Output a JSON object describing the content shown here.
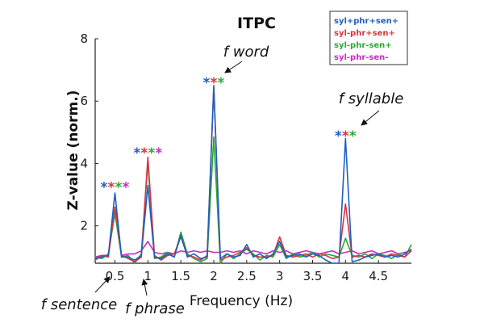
{
  "chart_data": {
    "type": "line",
    "title": "ITPC",
    "xlabel": "Frequency (Hz)",
    "ylabel": "Z-value (norm.)",
    "xlim": [
      0.2,
      5.0
    ],
    "ylim": [
      0.8,
      8
    ],
    "xticks": [
      0.5,
      1,
      1.5,
      2,
      2.5,
      3,
      3.5,
      4,
      4.5
    ],
    "xtick_labels": [
      "0.5",
      "1",
      "1.5",
      "2",
      "2.5",
      "3",
      "3.5",
      "4",
      "4.5"
    ],
    "yticks": [
      2,
      4,
      6,
      8
    ],
    "ytick_labels": [
      "2",
      "4",
      "6",
      "8"
    ],
    "series": [
      {
        "name": "syl+phr+sen+",
        "color": "#1f5fbf",
        "x": [
          0.2,
          0.3,
          0.4,
          0.5,
          0.6,
          0.7,
          0.8,
          0.9,
          1.0,
          1.1,
          1.2,
          1.3,
          1.4,
          1.5,
          1.6,
          1.7,
          1.8,
          1.9,
          2.0,
          2.1,
          2.2,
          2.3,
          2.4,
          2.5,
          2.6,
          2.7,
          2.8,
          2.9,
          3.0,
          3.1,
          3.2,
          3.3,
          3.4,
          3.5,
          3.6,
          3.7,
          3.8,
          3.9,
          4.0,
          4.1,
          4.2,
          4.3,
          4.4,
          4.5,
          4.6,
          4.7,
          4.8,
          4.9,
          5.0
        ],
        "y": [
          0.95,
          1.0,
          1.05,
          3.05,
          1.0,
          1.0,
          0.9,
          1.05,
          3.3,
          1.0,
          0.95,
          1.1,
          1.0,
          1.7,
          1.0,
          1.1,
          0.95,
          1.0,
          6.5,
          0.95,
          1.1,
          1.0,
          1.05,
          1.4,
          1.0,
          1.1,
          0.95,
          1.1,
          1.5,
          1.0,
          1.05,
          1.1,
          1.0,
          1.1,
          1.05,
          0.9,
          0.75,
          0.8,
          4.8,
          0.85,
          0.9,
          1.0,
          1.05,
          1.1,
          1.0,
          1.05,
          1.0,
          1.1,
          1.25
        ]
      },
      {
        "name": "syl-phr+sen+",
        "color": "#d9343f",
        "x": [
          0.2,
          0.3,
          0.4,
          0.5,
          0.6,
          0.7,
          0.8,
          0.9,
          1.0,
          1.1,
          1.2,
          1.3,
          1.4,
          1.5,
          1.6,
          1.7,
          1.8,
          1.9,
          2.0,
          2.1,
          2.2,
          2.3,
          2.4,
          2.5,
          2.6,
          2.7,
          2.8,
          2.9,
          3.0,
          3.1,
          3.2,
          3.3,
          3.4,
          3.5,
          3.6,
          3.7,
          3.8,
          3.9,
          4.0,
          4.1,
          4.2,
          4.3,
          4.4,
          4.5,
          4.6,
          4.7,
          4.8,
          4.9,
          5.0
        ],
        "y": [
          0.9,
          1.05,
          1.0,
          2.6,
          1.05,
          0.95,
          0.85,
          1.0,
          4.2,
          1.05,
          0.9,
          1.05,
          1.1,
          1.65,
          1.05,
          1.0,
          0.9,
          1.05,
          6.45,
          0.9,
          1.0,
          1.05,
          1.15,
          1.3,
          1.05,
          1.0,
          1.0,
          1.05,
          1.65,
          1.05,
          1.0,
          1.05,
          1.1,
          1.0,
          1.1,
          1.05,
          0.95,
          1.0,
          2.7,
          1.0,
          1.05,
          1.0,
          1.1,
          1.05,
          1.0,
          1.1,
          1.05,
          1.0,
          1.2
        ]
      },
      {
        "name": "syl-phr-sen+",
        "color": "#2aa836",
        "x": [
          0.2,
          0.3,
          0.4,
          0.5,
          0.6,
          0.7,
          0.8,
          0.9,
          1.0,
          1.1,
          1.2,
          1.3,
          1.4,
          1.5,
          1.6,
          1.7,
          1.8,
          1.9,
          2.0,
          2.1,
          2.2,
          2.3,
          2.4,
          2.5,
          2.6,
          2.7,
          2.8,
          2.9,
          3.0,
          3.1,
          3.2,
          3.3,
          3.4,
          3.5,
          3.6,
          3.7,
          3.8,
          3.9,
          4.0,
          4.1,
          4.2,
          4.3,
          4.4,
          4.5,
          4.6,
          4.7,
          4.8,
          4.9,
          5.0
        ],
        "y": [
          1.0,
          0.95,
          1.1,
          2.4,
          1.0,
          1.05,
          0.8,
          1.1,
          4.05,
          0.95,
          1.0,
          1.15,
          1.0,
          1.8,
          1.1,
          0.95,
          0.85,
          0.95,
          4.85,
          0.8,
          1.1,
          0.95,
          1.1,
          1.25,
          1.1,
          0.9,
          1.05,
          1.0,
          1.4,
          0.95,
          1.1,
          1.0,
          1.05,
          1.15,
          1.0,
          1.1,
          1.05,
          1.0,
          1.6,
          1.05,
          1.0,
          1.1,
          0.95,
          1.1,
          1.05,
          0.95,
          1.1,
          1.0,
          1.4
        ]
      },
      {
        "name": "syl-phr-sen-",
        "color": "#c030c0",
        "x": [
          0.2,
          0.3,
          0.4,
          0.5,
          0.6,
          0.7,
          0.8,
          0.9,
          1.0,
          1.1,
          1.2,
          1.3,
          1.4,
          1.5,
          1.6,
          1.7,
          1.8,
          1.9,
          2.0,
          2.1,
          2.2,
          2.3,
          2.4,
          2.5,
          2.6,
          2.7,
          2.8,
          2.9,
          3.0,
          3.1,
          3.2,
          3.3,
          3.4,
          3.5,
          3.6,
          3.7,
          3.8,
          3.9,
          4.0,
          4.1,
          4.2,
          4.3,
          4.4,
          4.5,
          4.6,
          4.7,
          4.8,
          4.9,
          5.0
        ],
        "y": [
          1.0,
          1.05,
          1.05,
          2.55,
          1.05,
          1.1,
          1.1,
          1.2,
          1.5,
          1.15,
          1.1,
          1.15,
          1.1,
          1.2,
          1.15,
          1.2,
          1.15,
          1.2,
          1.15,
          1.15,
          1.2,
          1.15,
          1.2,
          1.1,
          1.2,
          1.15,
          1.1,
          1.2,
          1.15,
          1.2,
          1.1,
          1.15,
          1.2,
          1.15,
          1.1,
          1.15,
          1.2,
          1.1,
          1.15,
          1.2,
          1.1,
          1.15,
          1.2,
          1.1,
          1.15,
          1.2,
          1.1,
          1.15,
          1.2
        ]
      }
    ],
    "legend": {
      "position": "top-right",
      "entries": [
        "syl+phr+sen+",
        "syl-phr+sen+",
        "syl-phr-sen+",
        "syl-phr-sen-"
      ]
    },
    "significance_marks": [
      {
        "x": 0.5,
        "y": 3.35,
        "symbol": "*",
        "colors": [
          "#1f5fbf",
          "#d9343f",
          "#2aa836",
          "#c030c0"
        ]
      },
      {
        "x": 1.0,
        "y": 4.45,
        "symbol": "*",
        "colors": [
          "#1f5fbf",
          "#d9343f",
          "#2aa836",
          "#c030c0"
        ]
      },
      {
        "x": 2.0,
        "y": 6.7,
        "symbol": "*",
        "colors": [
          "#1f5fbf",
          "#d9343f",
          "#2aa836"
        ]
      },
      {
        "x": 4.0,
        "y": 5.0,
        "symbol": "*",
        "colors": [
          "#1f5fbf",
          "#d9343f",
          "#2aa836"
        ]
      }
    ],
    "annotations": [
      {
        "text": "f word",
        "target_x": 2.0,
        "target_y": 6.5
      },
      {
        "text": "f syllable",
        "target_x": 4.0,
        "target_y": 4.8
      },
      {
        "text": "f sentence",
        "target_x": 0.5,
        "target_y": 0.8
      },
      {
        "text": "f phrase",
        "target_x": 1.0,
        "target_y": 0.8
      }
    ]
  }
}
